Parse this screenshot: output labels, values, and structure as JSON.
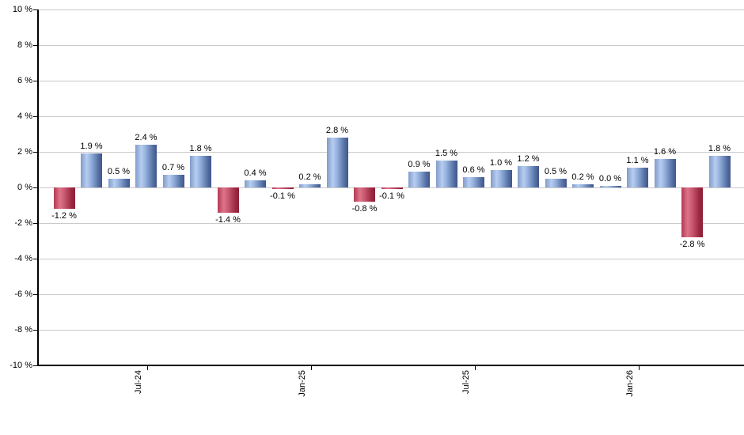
{
  "chart_data": {
    "type": "bar",
    "title": "",
    "grid": true,
    "legend": null,
    "y_axis": {
      "min": -10,
      "max": 10,
      "step": 2,
      "unit": "%",
      "tick_labels": [
        "10 %",
        "8 %",
        "6 %",
        "4 %",
        "2 %",
        "0 %",
        "-2 %",
        "-4 %",
        "-6 %",
        "-8 %",
        "-10 %"
      ]
    },
    "x_ticks": [
      {
        "bar_index": 3,
        "label": "Jul-24"
      },
      {
        "bar_index": 9,
        "label": "Jan-25"
      },
      {
        "bar_index": 15,
        "label": "Jul-25"
      },
      {
        "bar_index": 21,
        "label": "Jan-26"
      }
    ],
    "bars": [
      {
        "value": -1.2,
        "label": "-1.2 %"
      },
      {
        "value": 1.9,
        "label": "1.9 %"
      },
      {
        "value": 0.5,
        "label": "0.5 %"
      },
      {
        "value": 2.4,
        "label": "2.4 %"
      },
      {
        "value": 0.7,
        "label": "0.7 %"
      },
      {
        "value": 1.8,
        "label": "1.8 %"
      },
      {
        "value": -1.4,
        "label": "-1.4 %"
      },
      {
        "value": 0.4,
        "label": "0.4 %"
      },
      {
        "value": -0.1,
        "label": "-0.1 %"
      },
      {
        "value": 0.2,
        "label": "0.2 %"
      },
      {
        "value": 2.8,
        "label": "2.8 %"
      },
      {
        "value": -0.8,
        "label": "-0.8 %"
      },
      {
        "value": -0.1,
        "label": "-0.1 %"
      },
      {
        "value": 0.9,
        "label": "0.9 %"
      },
      {
        "value": 1.5,
        "label": "1.5 %"
      },
      {
        "value": 0.6,
        "label": "0.6 %"
      },
      {
        "value": 1.0,
        "label": "1.0 %"
      },
      {
        "value": 1.2,
        "label": "1.2 %"
      },
      {
        "value": 0.5,
        "label": "0.5 %"
      },
      {
        "value": 0.2,
        "label": "0.2 %"
      },
      {
        "value": 0.0,
        "label": "0.0 %"
      },
      {
        "value": 1.1,
        "label": "1.1 %"
      },
      {
        "value": 1.6,
        "label": "1.6 %"
      },
      {
        "value": -2.8,
        "label": "-2.8 %"
      },
      {
        "value": 1.8,
        "label": "1.8 %"
      }
    ],
    "colors": {
      "positive_stops": [
        "#7f9cca",
        "#b8cdf0",
        "#94b1dd",
        "#5671a4",
        "#42558b"
      ],
      "negative_stops": [
        "#b23a52",
        "#dd7489",
        "#cb5a73",
        "#9c2a42",
        "#8c1e33"
      ],
      "gridline": "#c9c9c9",
      "axis": "#000000",
      "text": "#000000"
    }
  }
}
